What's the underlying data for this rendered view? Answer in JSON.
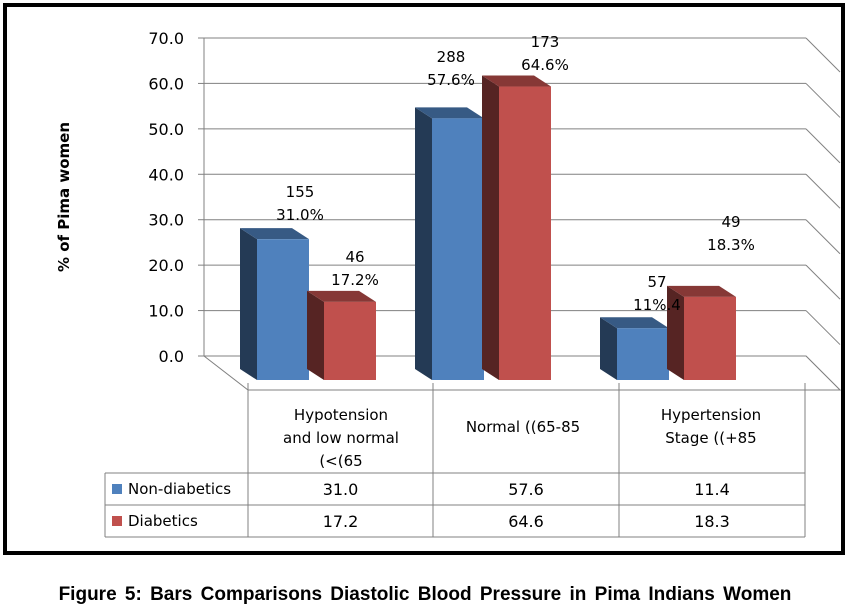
{
  "caption": "Figure 5: Bars Comparisons Diastolic Blood Pressure in Pima Indians Women",
  "chart_data": {
    "type": "bar",
    "style": "3d-clustered-column-with-data-table",
    "ylabel": "% of Pima women",
    "ylim": [
      0,
      70
    ],
    "yticks": [
      "0.0",
      "10.0",
      "20.0",
      "30.0",
      "40.0",
      "50.0",
      "60.0",
      "70.0"
    ],
    "grid": true,
    "categories": [
      [
        "Hypotension",
        "and low normal",
        "(<(65"
      ],
      [
        "Normal ((65-85"
      ],
      [
        "Hypertension",
        "Stage ((+85"
      ]
    ],
    "series": [
      {
        "name": "Non-diabetics",
        "color": "#4F81BD",
        "values": [
          31.0,
          57.6,
          11.4
        ],
        "table_values": [
          "31.0",
          "57.6",
          "11.4"
        ]
      },
      {
        "name": "Diabetics",
        "color": "#C0504D",
        "values": [
          17.2,
          64.6,
          18.3
        ],
        "table_values": [
          "17.2",
          "64.6",
          "18.3"
        ]
      }
    ],
    "annotations": [
      {
        "category": 0,
        "series": 0,
        "lines": [
          "155",
          "31.0%"
        ]
      },
      {
        "category": 0,
        "series": 1,
        "lines": [
          "46",
          "17.2%"
        ]
      },
      {
        "category": 1,
        "series": 0,
        "lines": [
          "288",
          "57.6%"
        ]
      },
      {
        "category": 1,
        "series": 1,
        "lines": [
          "173",
          "64.6%"
        ]
      },
      {
        "category": 2,
        "series": 0,
        "lines": [
          "57",
          "11%.4"
        ]
      },
      {
        "category": 2,
        "series": 1,
        "lines": [
          "49",
          "18.3%"
        ]
      }
    ]
  }
}
